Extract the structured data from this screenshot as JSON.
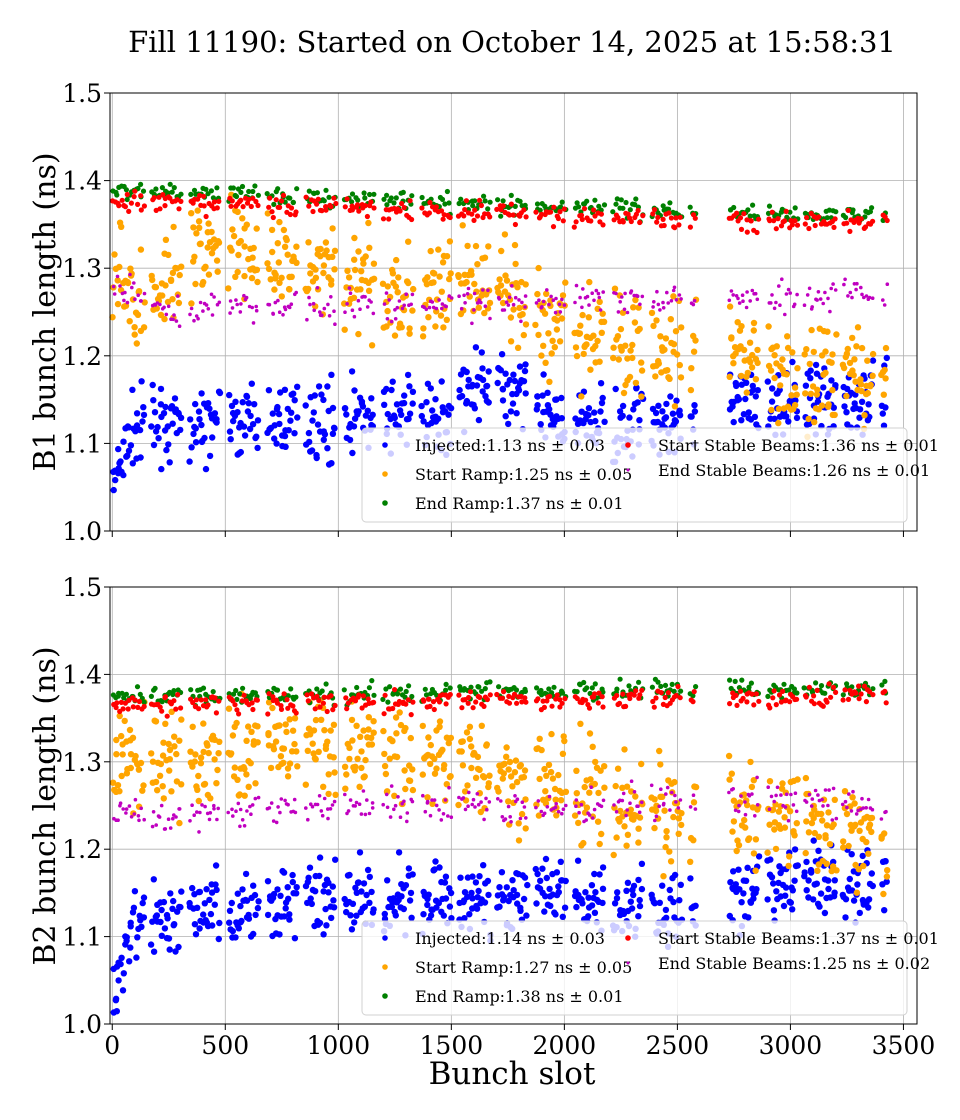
{
  "title": "Fill 11190: Started on October 14, 2025 at 15:58:31",
  "chart_data": [
    {
      "type": "scatter",
      "ylabel": "B1 bunch length (ns)",
      "xlabel": "",
      "xlim": [
        -10,
        3560
      ],
      "ylim": [
        1.0,
        1.5
      ],
      "xticks": [
        "0",
        "500",
        "1000",
        "1500",
        "2000",
        "2500",
        "3000",
        "3500"
      ],
      "yticks": [
        "1.0",
        "1.1",
        "1.2",
        "1.3",
        "1.4",
        "1.5"
      ],
      "grid": true,
      "legend_position": "lower-right",
      "series": [
        {
          "name": "Injected:1.13 ns ± 0.03",
          "color": "#0000ff",
          "spread": 0.03,
          "trend": [
            [
              0,
              1.05
            ],
            [
              100,
              1.12
            ],
            [
              500,
              1.12
            ],
            [
              700,
              1.13
            ],
            [
              1000,
              1.13
            ],
            [
              1500,
              1.13
            ],
            [
              1600,
              1.18
            ],
            [
              2000,
              1.12
            ],
            [
              2500,
              1.13
            ],
            [
              3000,
              1.15
            ],
            [
              3400,
              1.15
            ]
          ]
        },
        {
          "name": "Start Ramp:1.25 ns ± 0.05",
          "color": "#ffa500",
          "spread": 0.04,
          "trend": [
            [
              0,
              1.31
            ],
            [
              150,
              1.25
            ],
            [
              300,
              1.32
            ],
            [
              500,
              1.32
            ],
            [
              700,
              1.31
            ],
            [
              1000,
              1.29
            ],
            [
              1200,
              1.28
            ],
            [
              1500,
              1.27
            ],
            [
              1580,
              1.29
            ],
            [
              1800,
              1.25
            ],
            [
              2000,
              1.23
            ],
            [
              2500,
              1.2
            ],
            [
              3000,
              1.18
            ],
            [
              3400,
              1.18
            ]
          ]
        },
        {
          "name": "End Ramp:1.37 ns ± 0.01",
          "color": "#008000",
          "spread": 0.008,
          "trend": [
            [
              0,
              1.39
            ],
            [
              1000,
              1.38
            ],
            [
              2000,
              1.37
            ],
            [
              3400,
              1.36
            ]
          ]
        },
        {
          "name": "Start Stable Beams:1.36 ns ± 0.01",
          "color": "#ff0000",
          "spread": 0.008,
          "trend": [
            [
              0,
              1.375
            ],
            [
              1000,
              1.37
            ],
            [
              2000,
              1.36
            ],
            [
              3400,
              1.35
            ]
          ]
        },
        {
          "name": "End Stable Beams:1.26 ns ± 0.01",
          "color": "#c000c0",
          "spread": 0.012,
          "trend": [
            [
              0,
              1.28
            ],
            [
              300,
              1.25
            ],
            [
              600,
              1.255
            ],
            [
              1500,
              1.26
            ],
            [
              2500,
              1.265
            ],
            [
              3400,
              1.27
            ]
          ]
        }
      ]
    },
    {
      "type": "scatter",
      "ylabel": "B2 bunch length (ns)",
      "xlabel": "Bunch slot",
      "xlim": [
        -10,
        3560
      ],
      "ylim": [
        1.0,
        1.5
      ],
      "xticks": [
        "0",
        "500",
        "1000",
        "1500",
        "2000",
        "2500",
        "3000",
        "3500"
      ],
      "yticks": [
        "1.0",
        "1.1",
        "1.2",
        "1.3",
        "1.4",
        "1.5"
      ],
      "grid": true,
      "legend_position": "lower-right",
      "series": [
        {
          "name": "Injected:1.14 ns ± 0.03",
          "color": "#0000ff",
          "spread": 0.03,
          "trend": [
            [
              0,
              1.03
            ],
            [
              100,
              1.12
            ],
            [
              500,
              1.13
            ],
            [
              1000,
              1.15
            ],
            [
              1500,
              1.14
            ],
            [
              2000,
              1.15
            ],
            [
              2500,
              1.13
            ],
            [
              3000,
              1.16
            ],
            [
              3400,
              1.16
            ]
          ]
        },
        {
          "name": "Start Ramp:1.27 ns ± 0.05",
          "color": "#ffa500",
          "spread": 0.04,
          "trend": [
            [
              0,
              1.3
            ],
            [
              400,
              1.3
            ],
            [
              700,
              1.32
            ],
            [
              1000,
              1.31
            ],
            [
              1500,
              1.3
            ],
            [
              2000,
              1.27
            ],
            [
              2400,
              1.24
            ],
            [
              2800,
              1.24
            ],
            [
              3400,
              1.21
            ]
          ]
        },
        {
          "name": "End Ramp:1.38 ns ± 0.01",
          "color": "#008000",
          "spread": 0.008,
          "trend": [
            [
              0,
              1.375
            ],
            [
              1700,
              1.38
            ],
            [
              3400,
              1.385
            ]
          ]
        },
        {
          "name": "Start Stable Beams:1.37 ns ± 0.01",
          "color": "#ff0000",
          "spread": 0.008,
          "trend": [
            [
              0,
              1.365
            ],
            [
              1700,
              1.37
            ],
            [
              3400,
              1.375
            ]
          ]
        },
        {
          "name": "End Stable Beams:1.25 ns ± 0.02",
          "color": "#c000c0",
          "spread": 0.013,
          "trend": [
            [
              0,
              1.25
            ],
            [
              200,
              1.235
            ],
            [
              1000,
              1.25
            ],
            [
              2000,
              1.25
            ],
            [
              2700,
              1.26
            ],
            [
              3400,
              1.25
            ]
          ]
        }
      ]
    }
  ]
}
